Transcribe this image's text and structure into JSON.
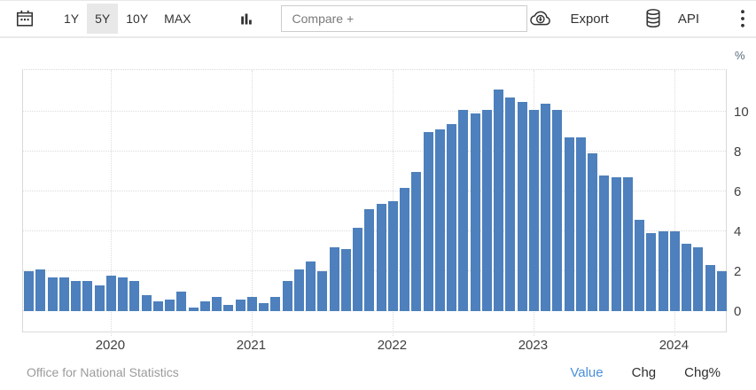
{
  "toolbar": {
    "calendar_icon": "calendar-icon",
    "ranges": [
      {
        "label": "1Y",
        "active": false
      },
      {
        "label": "5Y",
        "active": true
      },
      {
        "label": "10Y",
        "active": false
      },
      {
        "label": "MAX",
        "active": false
      }
    ],
    "active_range_bg": "#e8e8e8",
    "chart_type_icon": "bar-chart-icon",
    "compare": {
      "placeholder": "Compare +"
    },
    "export_label": "Export",
    "api_label": "API",
    "menu_icon": "kebab-menu-icon"
  },
  "chart_data": {
    "type": "bar",
    "unit": "%",
    "ylabel": "%",
    "bar_color": "#4d80bc",
    "grid": "dotted",
    "legend": "none",
    "ylim": [
      0,
      12.2
    ],
    "yticks": [
      0,
      2,
      4,
      6,
      8,
      10
    ],
    "x": [
      "2019-06",
      "2019-07",
      "2019-08",
      "2019-09",
      "2019-10",
      "2019-11",
      "2019-12",
      "2020-01",
      "2020-02",
      "2020-03",
      "2020-04",
      "2020-05",
      "2020-06",
      "2020-07",
      "2020-08",
      "2020-09",
      "2020-10",
      "2020-11",
      "2020-12",
      "2021-01",
      "2021-02",
      "2021-03",
      "2021-04",
      "2021-05",
      "2021-06",
      "2021-07",
      "2021-08",
      "2021-09",
      "2021-10",
      "2021-11",
      "2021-12",
      "2022-01",
      "2022-02",
      "2022-03",
      "2022-04",
      "2022-05",
      "2022-06",
      "2022-07",
      "2022-08",
      "2022-09",
      "2022-10",
      "2022-11",
      "2022-12",
      "2023-01",
      "2023-02",
      "2023-03",
      "2023-04",
      "2023-05",
      "2023-06",
      "2023-07",
      "2023-08",
      "2023-09",
      "2023-10",
      "2023-11",
      "2023-12",
      "2024-01",
      "2024-02",
      "2024-03",
      "2024-04",
      "2024-05"
    ],
    "values": [
      2.0,
      2.1,
      1.7,
      1.7,
      1.5,
      1.5,
      1.3,
      1.8,
      1.7,
      1.5,
      0.8,
      0.5,
      0.6,
      1.0,
      0.2,
      0.5,
      0.7,
      0.3,
      0.6,
      0.7,
      0.4,
      0.7,
      1.5,
      2.1,
      2.5,
      2.0,
      3.2,
      3.1,
      4.2,
      5.1,
      5.4,
      5.5,
      6.2,
      7.0,
      9.0,
      9.1,
      9.4,
      10.1,
      9.9,
      10.1,
      11.1,
      10.7,
      10.5,
      10.1,
      10.4,
      10.1,
      8.7,
      8.7,
      7.9,
      6.8,
      6.7,
      6.7,
      4.6,
      3.9,
      4.0,
      4.0,
      3.4,
      3.2,
      2.3,
      2.0
    ],
    "year_ticks": [
      {
        "label": "2020",
        "index": 7
      },
      {
        "label": "2021",
        "index": 19
      },
      {
        "label": "2022",
        "index": 31
      },
      {
        "label": "2023",
        "index": 43
      },
      {
        "label": "2024",
        "index": 55
      }
    ]
  },
  "footer": {
    "source": "Office for National Statistics",
    "views": [
      {
        "label": "Value",
        "active": true
      },
      {
        "label": "Chg",
        "active": false
      },
      {
        "label": "Chg%",
        "active": false
      }
    ],
    "active_color": "#4a90d9"
  }
}
